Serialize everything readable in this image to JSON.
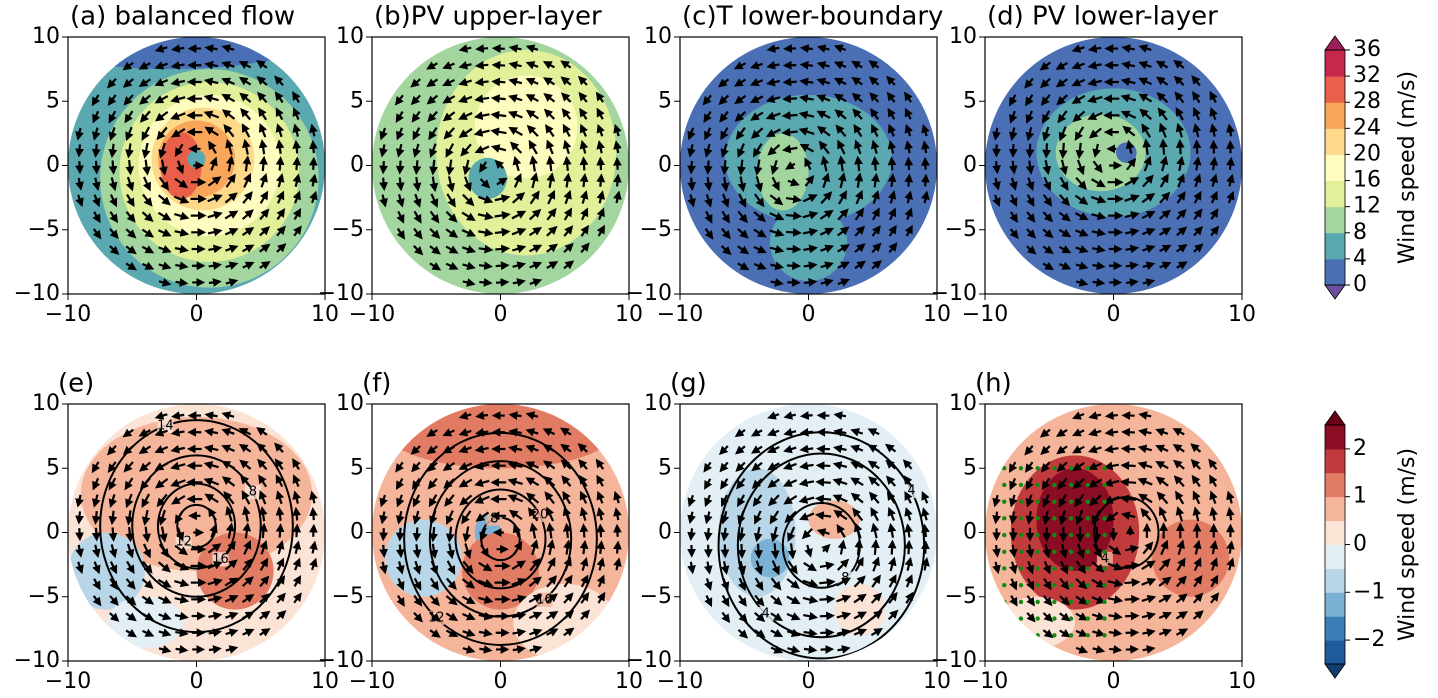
{
  "chart_data": [
    {
      "type": "contourf",
      "title": "(a) balanced flow",
      "xlim": [
        -10,
        10
      ],
      "ylim": [
        -10,
        10
      ],
      "xticks": [
        {
          "value": -10,
          "label": "−10"
        },
        0,
        10
      ],
      "yticks": [
        {
          "value": -10,
          "label": "−10"
        },
        {
          "value": -5,
          "label": "−5"
        },
        0,
        5,
        10
      ]
    },
    {
      "type": "contourf",
      "title": "(b)PV upper-layer",
      "xlim": [
        -10,
        10
      ],
      "ylim": [
        -10,
        10
      ],
      "xticks": [
        {
          "value": -10,
          "label": "−10"
        },
        0,
        10
      ],
      "yticks": [
        {
          "value": -10,
          "label": "−10"
        },
        {
          "value": -5,
          "label": "−5"
        },
        0,
        5,
        10
      ]
    },
    {
      "type": "contourf",
      "title": "(c)T lower-boundary",
      "xlim": [
        -10,
        10
      ],
      "ylim": [
        -10,
        10
      ],
      "xticks": [
        {
          "value": -10,
          "label": "−10"
        },
        0,
        10
      ],
      "yticks": [
        {
          "value": -10,
          "label": "−10"
        },
        {
          "value": -5,
          "label": "−5"
        },
        0,
        5,
        10
      ]
    },
    {
      "type": "contourf",
      "title": "(d) PV lower-layer",
      "xlim": [
        -10,
        10
      ],
      "ylim": [
        -10,
        10
      ],
      "xticks": [
        {
          "value": -10,
          "label": "−10"
        },
        0,
        10
      ],
      "yticks": [
        {
          "value": -10,
          "label": "−10"
        },
        {
          "value": -5,
          "label": "−5"
        },
        0,
        5,
        10
      ]
    },
    {
      "type": "contourf",
      "title": "(e)",
      "xlim": [
        -10,
        10
      ],
      "ylim": [
        -10,
        10
      ],
      "xticks": [
        {
          "value": -10,
          "label": "−10"
        },
        0,
        10
      ],
      "yticks": [
        {
          "value": -10,
          "label": "−10"
        },
        {
          "value": -5,
          "label": "−5"
        },
        0,
        5,
        10
      ],
      "contour_labels": [
        12,
        16,
        8,
        14
      ]
    },
    {
      "type": "contourf",
      "title": "(f)",
      "xlim": [
        -10,
        10
      ],
      "ylim": [
        -10,
        10
      ],
      "xticks": [
        {
          "value": -10,
          "label": "−10"
        },
        0,
        10
      ],
      "yticks": [
        {
          "value": -10,
          "label": "−10"
        },
        {
          "value": -5,
          "label": "−5"
        },
        0,
        5,
        10
      ],
      "contour_labels": [
        12,
        16,
        20,
        8
      ]
    },
    {
      "type": "contourf",
      "title": "(g)",
      "xlim": [
        -10,
        10
      ],
      "ylim": [
        -10,
        10
      ],
      "xticks": [
        {
          "value": -10,
          "label": "−10"
        },
        0,
        10
      ],
      "yticks": [
        {
          "value": -10,
          "label": "−10"
        },
        {
          "value": -5,
          "label": "−5"
        },
        0,
        5,
        10
      ],
      "contour_labels": [
        4,
        8,
        4
      ]
    },
    {
      "type": "contourf",
      "title": "(h)",
      "xlim": [
        -10,
        10
      ],
      "ylim": [
        -10,
        10
      ],
      "xticks": [
        {
          "value": -10,
          "label": "−10"
        },
        0,
        10
      ],
      "yticks": [
        {
          "value": -10,
          "label": "−10"
        },
        {
          "value": -5,
          "label": "−5"
        },
        0,
        5,
        10
      ],
      "contour_labels": [
        4
      ]
    }
  ],
  "colorbars": [
    {
      "label": "Wind speed (m/s)",
      "levels": [
        0,
        4,
        8,
        12,
        16,
        20,
        24,
        28,
        32,
        36
      ],
      "colors": [
        "#4a6fb5",
        "#5aa8b0",
        "#a3d59e",
        "#e2f09a",
        "#fefcbf",
        "#fed98a",
        "#f9a55a",
        "#e8604a",
        "#c4284a"
      ],
      "extend_colors": [
        "#6a4f9e",
        "#a0205a"
      ],
      "ticks": [
        0,
        4,
        8,
        12,
        16,
        20,
        24,
        28,
        32,
        36
      ]
    },
    {
      "label": "Wind speed (m/s)",
      "levels": [
        -2.5,
        -2,
        -1.5,
        -1,
        -0.5,
        0,
        0.5,
        1,
        1.5,
        2,
        2.5
      ],
      "colors": [
        "#1f5a9a",
        "#3a7fb8",
        "#7bb1d4",
        "#b8d6e8",
        "#e3eef5",
        "#fbe3d6",
        "#f5b59b",
        "#e27b63",
        "#c13b3d",
        "#8a0d24"
      ],
      "extend_colors": [
        "#123d70",
        "#6a0018"
      ],
      "ticks": [
        {
          "value": -2,
          "label": "−2"
        },
        {
          "value": -1,
          "label": "−1"
        },
        0,
        1,
        2
      ]
    }
  ]
}
